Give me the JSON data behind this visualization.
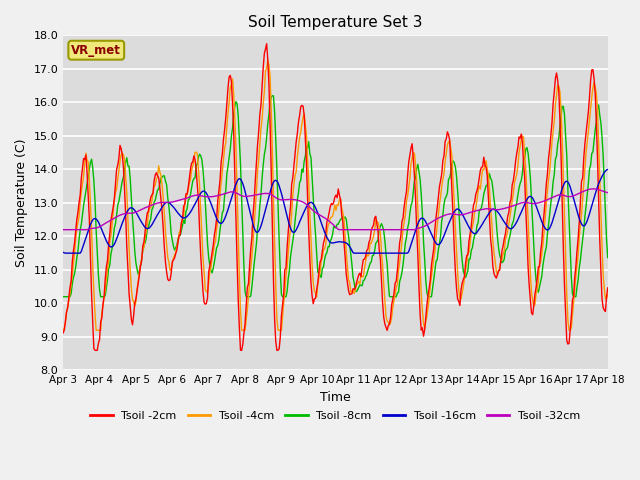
{
  "title": "Soil Temperature Set 3",
  "xlabel": "Time",
  "ylabel": "Soil Temperature (C)",
  "ylim": [
    8.0,
    18.0
  ],
  "yticks": [
    8.0,
    9.0,
    10.0,
    11.0,
    12.0,
    13.0,
    14.0,
    15.0,
    16.0,
    17.0,
    18.0
  ],
  "xtick_labels": [
    "Apr 3",
    "Apr 4",
    "Apr 5",
    "Apr 6",
    "Apr 7",
    "Apr 8",
    "Apr 9",
    "Apr 10",
    "Apr 11",
    "Apr 12",
    "Apr 13",
    "Apr 14",
    "Apr 15",
    "Apr 16",
    "Apr 17",
    "Apr 18"
  ],
  "legend_labels": [
    "Tsoil -2cm",
    "Tsoil -4cm",
    "Tsoil -8cm",
    "Tsoil -16cm",
    "Tsoil -32cm"
  ],
  "line_colors": [
    "#ff0000",
    "#ff9900",
    "#00bb00",
    "#0000cc",
    "#bb00bb"
  ],
  "annotation_text": "VR_met",
  "annotation_color": "#8b0000",
  "bg_color": "#dcdcdc",
  "grid_color": "#ffffff",
  "fig_facecolor": "#f0f0f0",
  "n_points": 480
}
